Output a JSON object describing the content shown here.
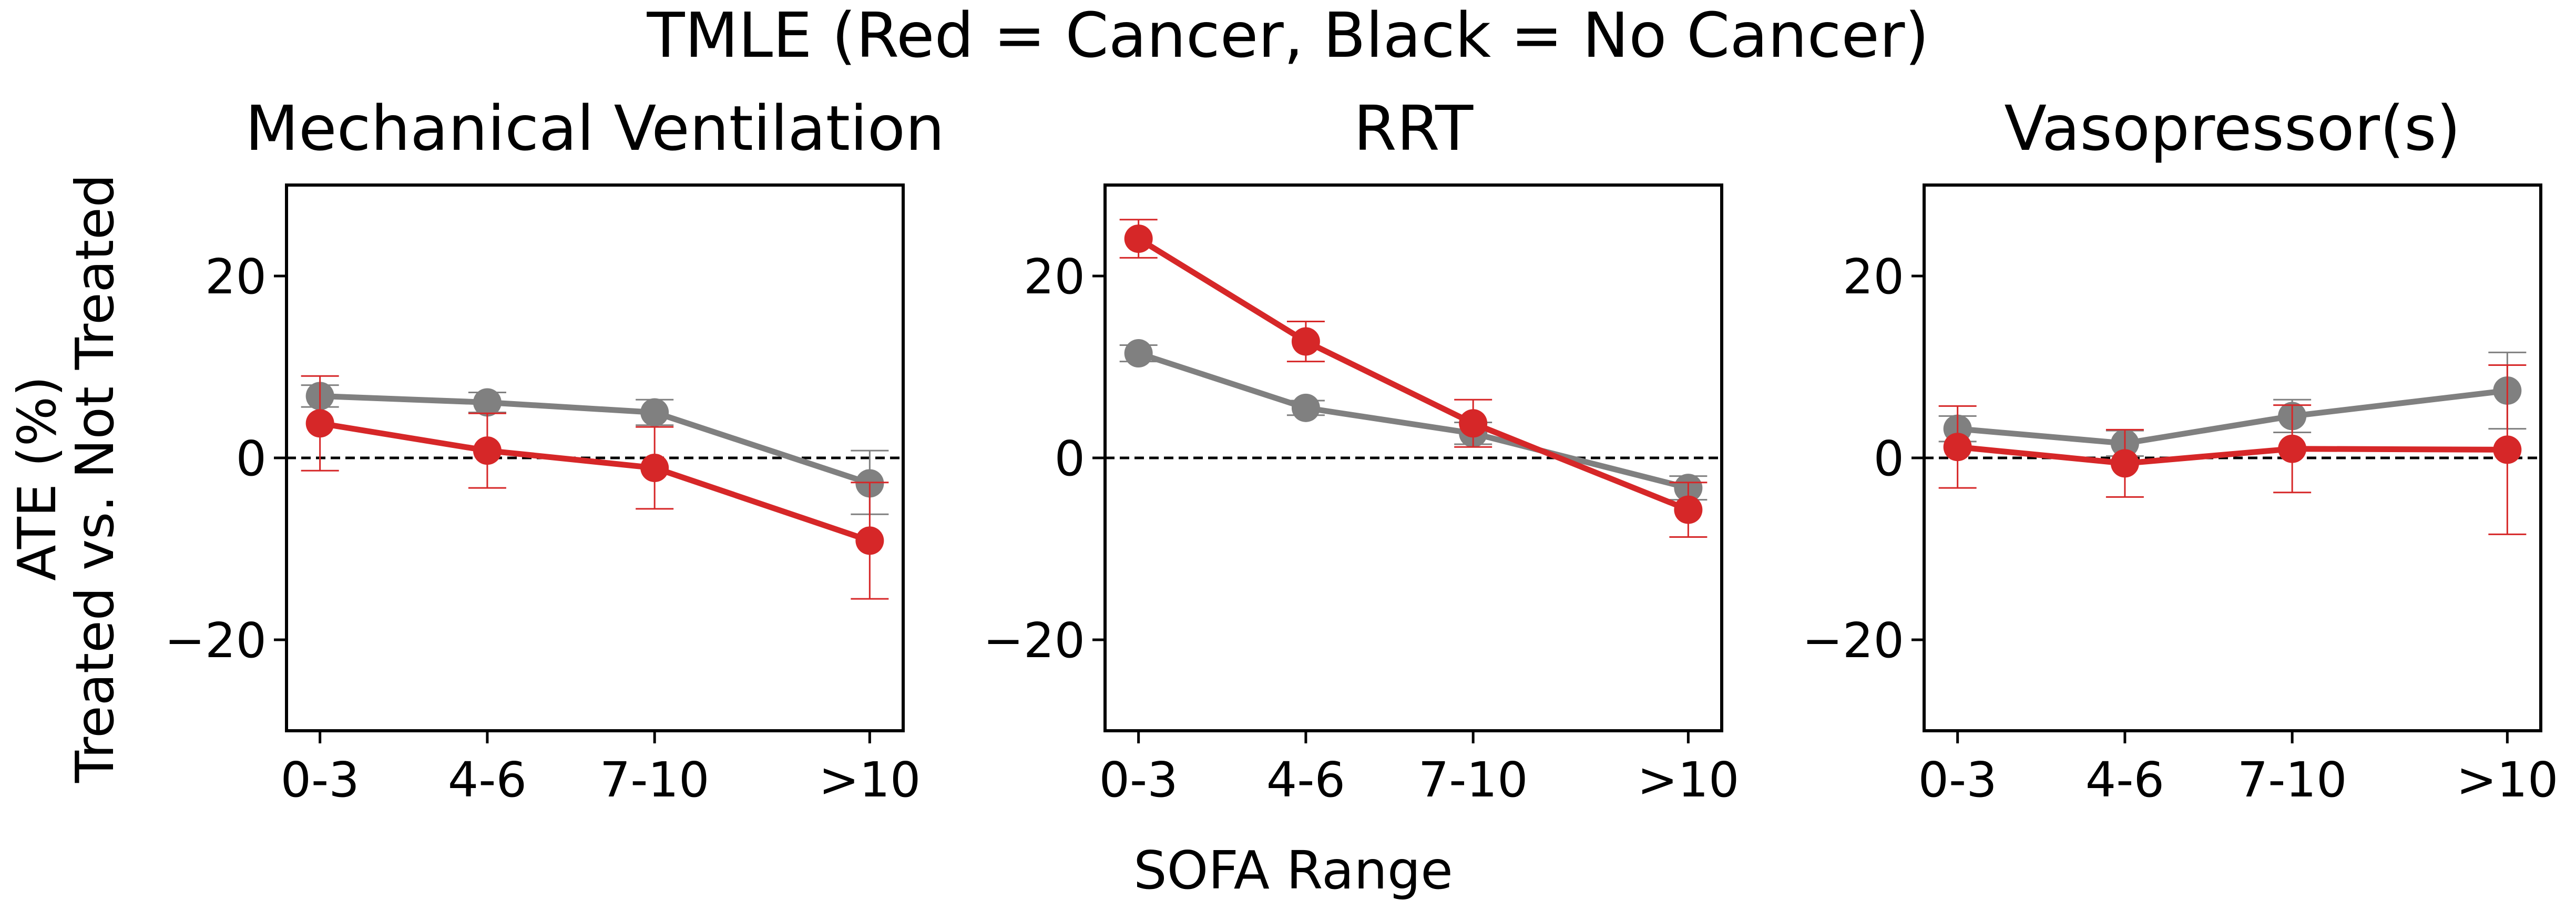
{
  "title": "TMLE (Red = Cancer, Black = No Cancer)",
  "xlabel": "SOFA Range",
  "ylabel_line1": "ATE (%)",
  "ylabel_line2": "Treated vs. Not Treated",
  "colors": {
    "cancer": "#d62728",
    "no_cancer": "#808080",
    "reference_line": "#000000"
  },
  "chart_data": [
    {
      "type": "line",
      "title": "Mechanical Ventilation",
      "categories": [
        "0-3",
        "4-6",
        "7-10",
        ">10"
      ],
      "x": [
        1.5,
        5,
        8.5,
        13
      ],
      "xlim": [
        0.8,
        13.7
      ],
      "ylim": [
        -30,
        30
      ],
      "yticks": [
        -20,
        0,
        20
      ],
      "ytick_labels": [
        "−20",
        "0",
        "20"
      ],
      "grid": false,
      "reference_line_y": 0,
      "series": [
        {
          "color": "#808080",
          "values": [
            6.8,
            6.1,
            5.0,
            -2.8
          ],
          "err_low": [
            5.6,
            5.0,
            3.6,
            -6.2
          ],
          "err_high": [
            8.0,
            7.2,
            6.4,
            0.8
          ]
        },
        {
          "color": "#d62728",
          "values": [
            3.8,
            0.8,
            -1.1,
            -9.1
          ],
          "err_low": [
            -1.4,
            -3.3,
            -5.6,
            -15.5
          ],
          "err_high": [
            9.0,
            4.9,
            3.4,
            -2.7
          ]
        }
      ]
    },
    {
      "type": "line",
      "title": "RRT",
      "categories": [
        "0-3",
        "4-6",
        "7-10",
        ">10"
      ],
      "x": [
        1.5,
        5,
        8.5,
        13
      ],
      "xlim": [
        0.8,
        13.7
      ],
      "ylim": [
        -30,
        30
      ],
      "yticks": [
        -20,
        0,
        20
      ],
      "ytick_labels": [
        "−20",
        "0",
        "20"
      ],
      "grid": false,
      "reference_line_y": 0,
      "series": [
        {
          "color": "#808080",
          "values": [
            11.5,
            5.5,
            2.7,
            -3.3
          ],
          "err_low": [
            10.6,
            4.7,
            1.5,
            -4.6
          ],
          "err_high": [
            12.4,
            6.3,
            3.9,
            -2.0
          ]
        },
        {
          "color": "#d62728",
          "values": [
            24.1,
            12.8,
            3.8,
            -5.7
          ],
          "err_low": [
            22.0,
            10.6,
            1.2,
            -8.7
          ],
          "err_high": [
            26.2,
            15.0,
            6.4,
            -2.7
          ]
        }
      ]
    },
    {
      "type": "line",
      "title": "Vasopressor(s)",
      "categories": [
        "0-3",
        "4-6",
        "7-10",
        ">10"
      ],
      "x": [
        1.5,
        5,
        8.5,
        13
      ],
      "xlim": [
        0.8,
        13.7
      ],
      "ylim": [
        -30,
        30
      ],
      "yticks": [
        -20,
        0,
        20
      ],
      "ytick_labels": [
        "−20",
        "0",
        "20"
      ],
      "grid": false,
      "reference_line_y": 0,
      "series": [
        {
          "color": "#808080",
          "values": [
            3.2,
            1.6,
            4.6,
            7.4
          ],
          "err_low": [
            1.8,
            0.2,
            2.8,
            3.2
          ],
          "err_high": [
            4.6,
            3.0,
            6.4,
            11.6
          ]
        },
        {
          "color": "#d62728",
          "values": [
            1.2,
            -0.6,
            1.0,
            0.9
          ],
          "err_low": [
            -3.3,
            -4.3,
            -3.8,
            -8.4
          ],
          "err_high": [
            5.7,
            3.1,
            5.8,
            10.2
          ]
        }
      ]
    }
  ]
}
